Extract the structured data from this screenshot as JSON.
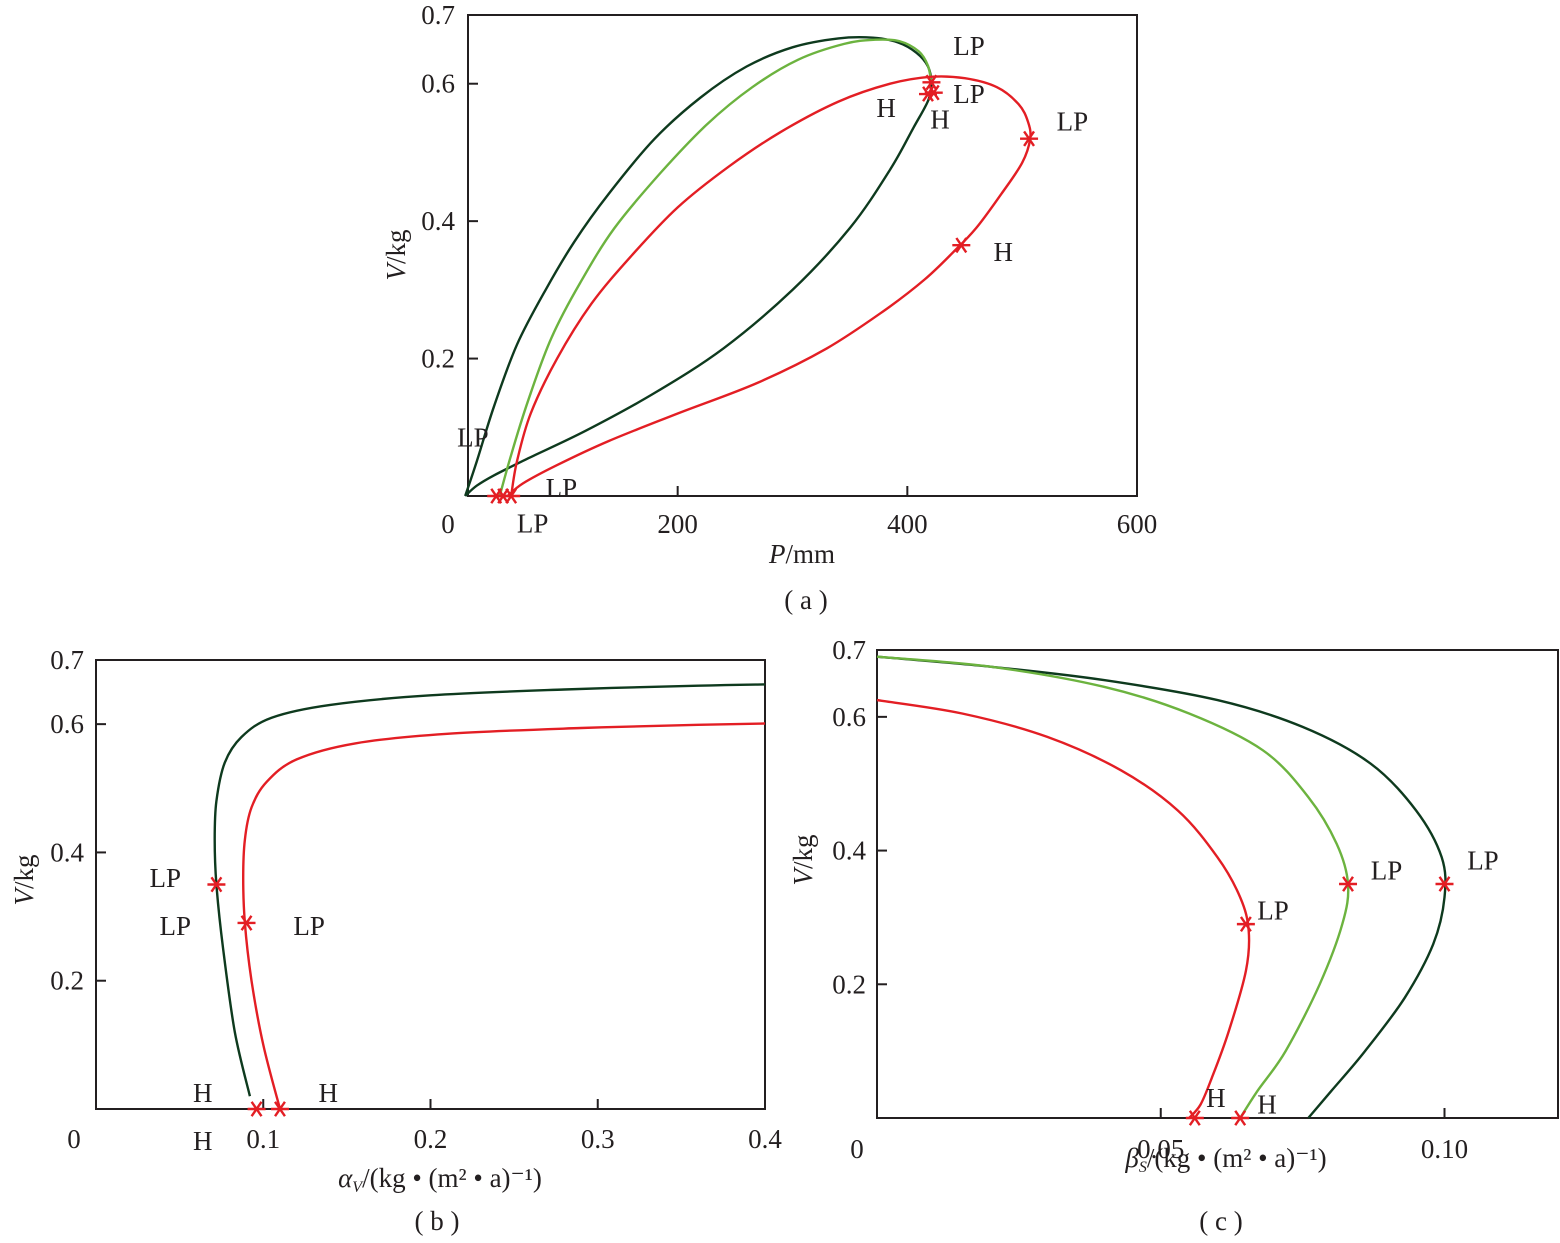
{
  "colors": {
    "dark_green": "#0e3a1e",
    "light_green": "#6cb33f",
    "red": "#e31e24",
    "marker": "#e31e24",
    "frame": "#231f20"
  },
  "chart_data": [
    {
      "id": "a",
      "type": "line",
      "caption": "( a )",
      "xlabel_var": "P",
      "xlabel_unit": "/mm",
      "ylabel_var": "V",
      "ylabel_unit": "/kg",
      "xlim": [
        0,
        600
      ],
      "ylim": [
        0,
        0.7
      ],
      "x_ticks": [
        {
          "v": 0,
          "label": "0"
        },
        {
          "v": 200,
          "label": "200"
        },
        {
          "v": 400,
          "label": "400"
        },
        {
          "v": 600,
          "label": "600"
        }
      ],
      "y_ticks": [
        {
          "v": 0.2,
          "label": "0.2"
        },
        {
          "v": 0.4,
          "label": "0.4"
        },
        {
          "v": 0.6,
          "label": "0.6"
        },
        {
          "v": 0.7,
          "label": "0.7"
        }
      ],
      "series": [
        {
          "color_key": "dark_green",
          "x": [
            15,
            25,
            40,
            60,
            85,
            110,
            140,
            180,
            220,
            260,
            300,
            340,
            370,
            392,
            408,
            418,
            421,
            418,
            405,
            385,
            350,
            300,
            240,
            180,
            120,
            70,
            40,
            25,
            15
          ],
          "y": [
            0.0,
            0.05,
            0.13,
            0.22,
            0.3,
            0.37,
            0.44,
            0.52,
            0.58,
            0.625,
            0.653,
            0.666,
            0.667,
            0.66,
            0.645,
            0.625,
            0.6,
            0.575,
            0.535,
            0.475,
            0.39,
            0.3,
            0.215,
            0.15,
            0.095,
            0.055,
            0.03,
            0.015,
            0.0
          ]
        },
        {
          "color_key": "light_green",
          "x": [
            45,
            55,
            70,
            90,
            115,
            145,
            185,
            225,
            265,
            305,
            345,
            372,
            393,
            410,
            418,
            421
          ],
          "y": [
            0.0,
            0.06,
            0.14,
            0.23,
            0.31,
            0.39,
            0.47,
            0.54,
            0.595,
            0.635,
            0.658,
            0.664,
            0.662,
            0.647,
            0.626,
            0.6
          ]
        },
        {
          "color_key": "red",
          "x": [
            55,
            60,
            72,
            95,
            125,
            160,
            200,
            245,
            290,
            340,
            385,
            420,
            450,
            478,
            497,
            505,
            507,
            500,
            482,
            460,
            440,
            415,
            380,
            330,
            270,
            200,
            140,
            95,
            65,
            52
          ],
          "y": [
            0.0,
            0.05,
            0.12,
            0.2,
            0.28,
            0.35,
            0.42,
            0.48,
            0.53,
            0.574,
            0.6,
            0.61,
            0.608,
            0.595,
            0.57,
            0.545,
            0.52,
            0.485,
            0.44,
            0.39,
            0.355,
            0.315,
            0.27,
            0.215,
            0.165,
            0.12,
            0.08,
            0.045,
            0.018,
            0.0
          ]
        }
      ],
      "markers": [
        {
          "x": 42,
          "y": 0.0
        },
        {
          "x": 48,
          "y": 0.0
        },
        {
          "x": 55,
          "y": 0.0
        },
        {
          "x": 421,
          "y": 0.602
        },
        {
          "x": 418,
          "y": 0.585
        },
        {
          "x": 423,
          "y": 0.587
        },
        {
          "x": 506,
          "y": 0.52
        },
        {
          "x": 447,
          "y": 0.365
        }
      ],
      "annotations": [
        {
          "text": "LP",
          "x": 440,
          "y": 0.655
        },
        {
          "text": "LP",
          "x": 440,
          "y": 0.585
        },
        {
          "text": "H",
          "x": 373,
          "y": 0.565
        },
        {
          "text": "H",
          "x": 420,
          "y": 0.548
        },
        {
          "text": "LP",
          "x": 530,
          "y": 0.545
        },
        {
          "text": "H",
          "x": 475,
          "y": 0.355
        },
        {
          "text": "LP",
          "x": 8,
          "y": 0.085
        },
        {
          "text": "LP",
          "x": 85,
          "y": 0.012
        },
        {
          "text": "LP",
          "x": 60,
          "y": -0.04
        }
      ]
    },
    {
      "id": "b",
      "type": "line",
      "caption": "( b )",
      "xlabel_var": "α",
      "xlabel_sub": "V",
      "xlabel_unit": "/(kg • (m² • a)⁻¹)",
      "ylabel_var": "V",
      "ylabel_unit": "/kg",
      "xlim": [
        0,
        0.4
      ],
      "ylim": [
        0,
        0.7
      ],
      "x_ticks": [
        {
          "v": 0,
          "label": "0"
        },
        {
          "v": 0.1,
          "label": "0.1"
        },
        {
          "v": 0.2,
          "label": "0.2"
        },
        {
          "v": 0.3,
          "label": "0.3"
        },
        {
          "v": 0.4,
          "label": "0.4"
        }
      ],
      "y_ticks": [
        {
          "v": 0.2,
          "label": "0.2"
        },
        {
          "v": 0.4,
          "label": "0.4"
        },
        {
          "v": 0.6,
          "label": "0.6"
        },
        {
          "v": 0.7,
          "label": "0.7"
        }
      ],
      "series": [
        {
          "color_key": "dark_green",
          "x": [
            0.092,
            0.083,
            0.076,
            0.072,
            0.071,
            0.072,
            0.077,
            0.087,
            0.105,
            0.14,
            0.2,
            0.28,
            0.36,
            0.4
          ],
          "y": [
            0.02,
            0.12,
            0.25,
            0.35,
            0.42,
            0.48,
            0.54,
            0.58,
            0.61,
            0.63,
            0.645,
            0.654,
            0.66,
            0.662
          ]
        },
        {
          "color_key": "red",
          "x": [
            0.11,
            0.1,
            0.093,
            0.089,
            0.088,
            0.089,
            0.093,
            0.102,
            0.12,
            0.155,
            0.21,
            0.29,
            0.36,
            0.4
          ],
          "y": [
            0.0,
            0.1,
            0.2,
            0.29,
            0.36,
            0.42,
            0.47,
            0.51,
            0.545,
            0.57,
            0.585,
            0.594,
            0.599,
            0.601
          ]
        }
      ],
      "markers": [
        {
          "x": 0.072,
          "y": 0.35
        },
        {
          "x": 0.09,
          "y": 0.29
        },
        {
          "x": 0.096,
          "y": 0.0
        },
        {
          "x": 0.11,
          "y": 0.0
        }
      ],
      "annotations": [
        {
          "text": "LP",
          "x": 0.032,
          "y": 0.36
        },
        {
          "text": "LP",
          "x": 0.038,
          "y": 0.285
        },
        {
          "text": "LP",
          "x": 0.118,
          "y": 0.285
        },
        {
          "text": "H",
          "x": 0.058,
          "y": 0.025
        },
        {
          "text": "H",
          "x": 0.133,
          "y": 0.025
        },
        {
          "text": "H",
          "x": 0.058,
          "y": -0.05
        }
      ]
    },
    {
      "id": "c",
      "type": "line",
      "caption": "( c )",
      "xlabel_var": "β",
      "xlabel_sub": "S",
      "xlabel_unit": "/(kg • (m² • a)⁻¹)",
      "ylabel_var": "V",
      "ylabel_unit": "/kg",
      "xlim": [
        0,
        0.12
      ],
      "ylim": [
        0,
        0.7
      ],
      "x_ticks": [
        {
          "v": 0,
          "label": "0"
        },
        {
          "v": 0.05,
          "label": "0.05"
        },
        {
          "v": 0.1,
          "label": "0.10"
        }
      ],
      "y_ticks": [
        {
          "v": 0.2,
          "label": "0.2"
        },
        {
          "v": 0.4,
          "label": "0.4"
        },
        {
          "v": 0.6,
          "label": "0.6"
        },
        {
          "v": 0.7,
          "label": "0.7"
        }
      ],
      "series": [
        {
          "color_key": "dark_green",
          "x": [
            0.0,
            0.02,
            0.04,
            0.06,
            0.075,
            0.087,
            0.095,
            0.0995,
            0.1,
            0.098,
            0.093,
            0.086,
            0.08,
            0.076
          ],
          "y": [
            0.69,
            0.675,
            0.655,
            0.625,
            0.585,
            0.53,
            0.46,
            0.39,
            0.33,
            0.26,
            0.18,
            0.1,
            0.04,
            0.0
          ]
        },
        {
          "color_key": "light_green",
          "x": [
            0.0,
            0.02,
            0.04,
            0.055,
            0.068,
            0.076,
            0.081,
            0.083,
            0.082,
            0.078,
            0.072,
            0.067,
            0.064
          ],
          "y": [
            0.69,
            0.675,
            0.645,
            0.605,
            0.55,
            0.48,
            0.41,
            0.35,
            0.29,
            0.2,
            0.1,
            0.04,
            0.0
          ]
        },
        {
          "color_key": "red",
          "x": [
            0.0,
            0.015,
            0.03,
            0.043,
            0.053,
            0.06,
            0.064,
            0.0655,
            0.065,
            0.062,
            0.059,
            0.057,
            0.055
          ],
          "y": [
            0.625,
            0.605,
            0.57,
            0.52,
            0.46,
            0.39,
            0.33,
            0.28,
            0.22,
            0.13,
            0.06,
            0.02,
            0.0
          ]
        }
      ],
      "markers": [
        {
          "x": 0.1,
          "y": 0.35
        },
        {
          "x": 0.083,
          "y": 0.35
        },
        {
          "x": 0.065,
          "y": 0.29
        },
        {
          "x": 0.056,
          "y": 0.0
        },
        {
          "x": 0.064,
          "y": 0.0
        }
      ],
      "annotations": [
        {
          "text": "LP",
          "x": 0.104,
          "y": 0.385
        },
        {
          "text": "LP",
          "x": 0.087,
          "y": 0.37
        },
        {
          "text": "LP",
          "x": 0.067,
          "y": 0.31
        },
        {
          "text": "H",
          "x": 0.058,
          "y": 0.03
        },
        {
          "text": "H",
          "x": 0.067,
          "y": 0.02
        }
      ]
    }
  ]
}
